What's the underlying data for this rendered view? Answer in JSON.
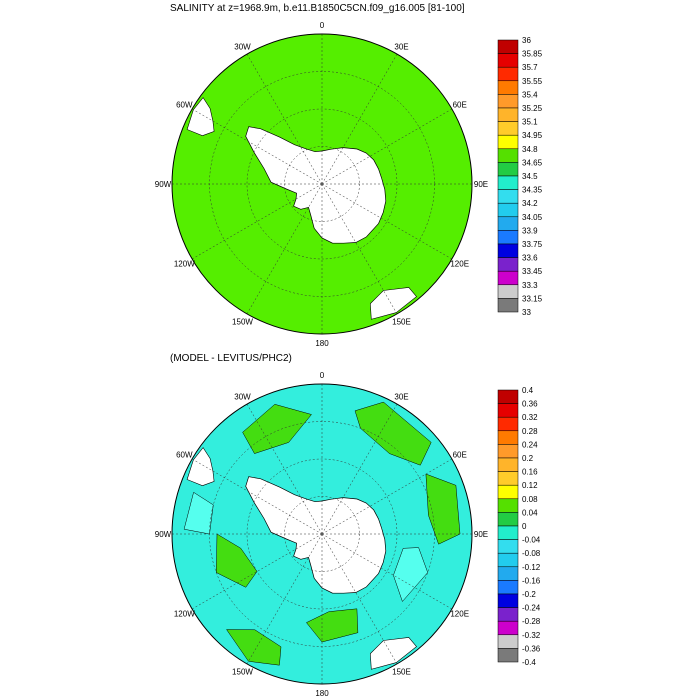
{
  "panels": [
    {
      "title": "SALINITY at z=1968.9m, b.e11.B1850C5CN.f09_g16.005 [81-100]",
      "lon_labels": [
        "0",
        "30E",
        "60E",
        "90E",
        "120E",
        "150E",
        "180",
        "150W",
        "120W",
        "90W",
        "60W",
        "30W"
      ],
      "colorbar_labels": [
        "36",
        "35.85",
        "35.7",
        "35.55",
        "35.4",
        "35.25",
        "35.1",
        "34.95",
        "34.8",
        "34.65",
        "34.5",
        "34.35",
        "34.2",
        "34.05",
        "33.9",
        "33.75",
        "33.6",
        "33.45",
        "33.3",
        "33.15",
        "33"
      ],
      "colorbar_colors": [
        "#c00000",
        "#e60000",
        "#ff2a00",
        "#ff7a00",
        "#ff9a2a",
        "#ffb42a",
        "#ffcc2a",
        "#ffff00",
        "#55e000",
        "#22cc44",
        "#22eecc",
        "#33ddee",
        "#22ccee",
        "#22aaee",
        "#1a7aff",
        "#0000e0",
        "#7a22cc",
        "#cc00cc",
        "#cccccc",
        "#7a7a7a"
      ],
      "ocean_fill": "#55ee00"
    },
    {
      "title": "(MODEL - LEVITUS/PHC2)",
      "lon_labels": [
        "0",
        "30E",
        "60E",
        "90E",
        "120E",
        "150E",
        "180",
        "150W",
        "120W",
        "90W",
        "60W",
        "30W"
      ],
      "colorbar_labels": [
        "0.4",
        "0.36",
        "0.32",
        "0.28",
        "0.24",
        "0.2",
        "0.16",
        "0.12",
        "0.08",
        "0.04",
        "0",
        "-0.04",
        "-0.08",
        "-0.12",
        "-0.16",
        "-0.2",
        "-0.24",
        "-0.28",
        "-0.32",
        "-0.36",
        "-0.4"
      ],
      "colorbar_colors": [
        "#c00000",
        "#e60000",
        "#ff2a00",
        "#ff7a00",
        "#ff9a2a",
        "#ffb42a",
        "#ffcc2a",
        "#ffff00",
        "#55e000",
        "#22cc44",
        "#22eecc",
        "#33ddee",
        "#22ccee",
        "#22aaee",
        "#1a7aff",
        "#0000e0",
        "#7a22cc",
        "#cc00cc",
        "#cccccc",
        "#7a7a7a"
      ],
      "ocean_fill": "#33eedd"
    }
  ]
}
